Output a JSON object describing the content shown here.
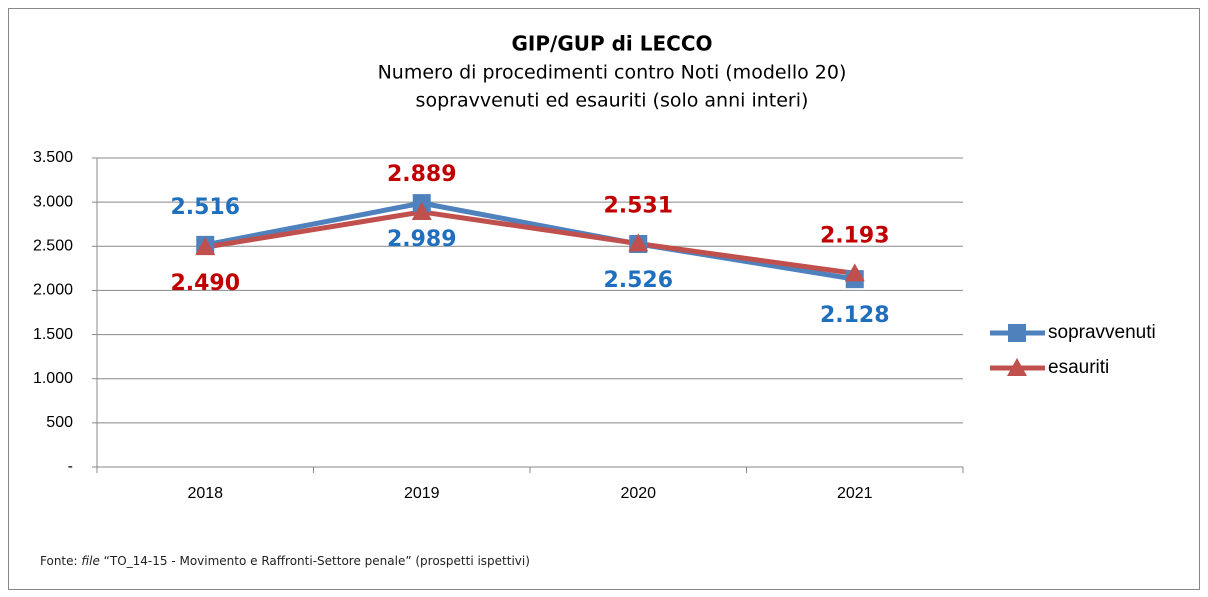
{
  "chart_data": {
    "type": "line",
    "title": "GIP/GUP di LECCO",
    "subtitle": [
      "Numero di procedimenti contro Noti (modello 20)",
      "sopravvenuti ed esauriti (solo anni interi)"
    ],
    "categories": [
      "2018",
      "2019",
      "2020",
      "2021"
    ],
    "series": [
      {
        "name": "sopravvenuti",
        "color": "#4f81bd",
        "label_color": "#1f6fbf",
        "marker": "square",
        "values": [
          2516,
          2989,
          2526,
          2128
        ],
        "value_labels": [
          "2.516",
          "2.989",
          "2.526",
          "2.128"
        ]
      },
      {
        "name": "esauriti",
        "color": "#c0504d",
        "label_color": "#c00000",
        "marker": "triangle",
        "values": [
          2490,
          2889,
          2531,
          2193
        ],
        "value_labels": [
          "2.490",
          "2.889",
          "2.531",
          "2.193"
        ]
      }
    ],
    "ylim": [
      0,
      3500
    ],
    "yticks": [
      {
        "value": 0,
        "label": "-"
      },
      500,
      {
        "value": 1000,
        "label": "1.000"
      },
      {
        "value": 1500,
        "label": "1.500"
      },
      {
        "value": 2000,
        "label": "2.000"
      },
      {
        "value": 2500,
        "label": "2.500"
      },
      {
        "value": 3000,
        "label": "3.000"
      },
      {
        "value": 3500,
        "label": "3.500"
      }
    ],
    "grid": true,
    "legend": "right",
    "source": [
      "Fonte: ",
      "file",
      " “TO_14-15 - Movimento e Raffronti-Settore penale” (prospetti ispettivi)"
    ]
  }
}
